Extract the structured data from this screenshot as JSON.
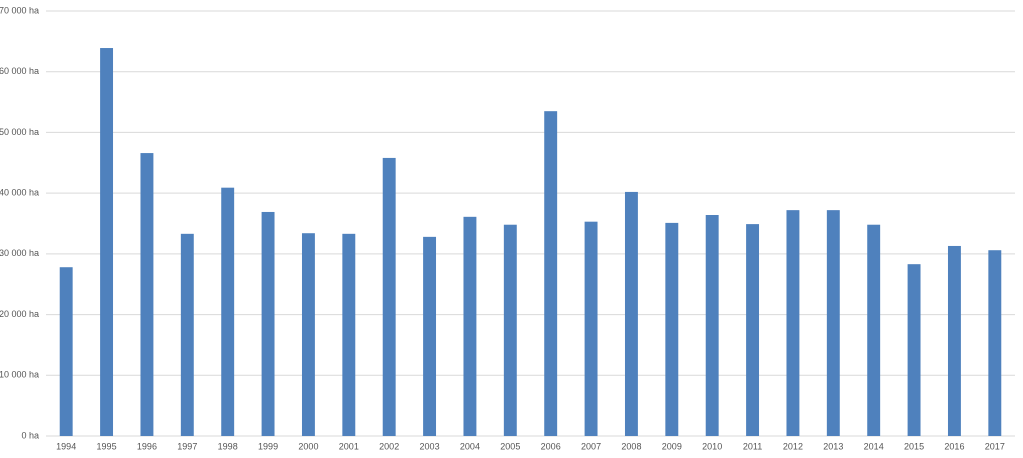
{
  "chart_data": {
    "type": "bar",
    "categories": [
      "1994",
      "1995",
      "1996",
      "1997",
      "1998",
      "1999",
      "2000",
      "2001",
      "2002",
      "2003",
      "2004",
      "2005",
      "2006",
      "2007",
      "2008",
      "2009",
      "2010",
      "2011",
      "2012",
      "2013",
      "2014",
      "2015",
      "2016",
      "2017"
    ],
    "values": [
      27800,
      63900,
      46600,
      33300,
      40900,
      36900,
      33400,
      33300,
      45800,
      32800,
      36100,
      34800,
      53500,
      35300,
      40200,
      35100,
      36400,
      34900,
      37200,
      37200,
      34800,
      28300,
      31300,
      30600
    ],
    "color": "#4f81bd",
    "ylim": [
      0,
      70000
    ],
    "yticks": [
      {
        "value": 0,
        "label": "0 ha"
      },
      {
        "value": 10000,
        "label": "10 000 ha"
      },
      {
        "value": 20000,
        "label": "20 000 ha"
      },
      {
        "value": 30000,
        "label": "30 000 ha"
      },
      {
        "value": 40000,
        "label": "40 000 ha"
      },
      {
        "value": 50000,
        "label": "50 000 ha"
      },
      {
        "value": 60000,
        "label": "60 000 ha"
      },
      {
        "value": 70000,
        "label": "70 000 ha"
      }
    ],
    "grid": true
  }
}
